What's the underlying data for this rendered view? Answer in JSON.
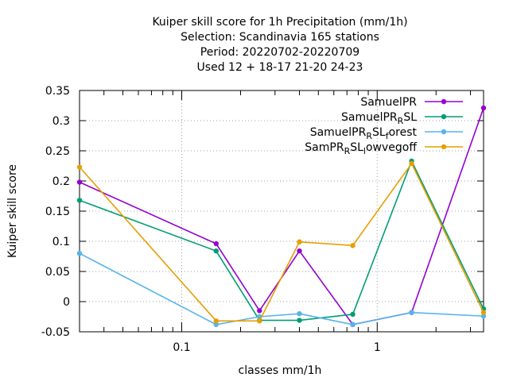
{
  "chart_data": {
    "type": "line",
    "title_lines": [
      "Kuiper skill score  for 1h Precipitation (mm/1h)",
      "Selection: Scandinavia    165 stations",
      "Period: 20220702-20220709",
      "Used  12 + 18-17 21-20 24-23"
    ],
    "xlabel": "classes mm/1h",
    "ylabel": "Kuiper skill score",
    "xscale": "log",
    "xlim": [
      0.03,
      3.5
    ],
    "ylim": [
      -0.05,
      0.35
    ],
    "x_ticks": [
      {
        "value": 0.1,
        "label": "0.1"
      },
      {
        "value": 1,
        "label": "1"
      }
    ],
    "y_ticks": [
      {
        "value": -0.05,
        "label": "-0.05"
      },
      {
        "value": 0,
        "label": "0"
      },
      {
        "value": 0.05,
        "label": "0.05"
      },
      {
        "value": 0.1,
        "label": "0.1"
      },
      {
        "value": 0.15,
        "label": "0.15"
      },
      {
        "value": 0.2,
        "label": "0.2"
      },
      {
        "value": 0.25,
        "label": "0.25"
      },
      {
        "value": 0.3,
        "label": "0.3"
      },
      {
        "value": 0.35,
        "label": "0.35"
      }
    ],
    "grid": true,
    "legend_position": "top-right",
    "x": [
      0.03,
      0.15,
      0.25,
      0.4,
      0.75,
      1.5,
      3.5
    ],
    "series": [
      {
        "name": "SamuelPR",
        "legend_parts": [
          [
            "SamuelPR",
            ""
          ]
        ],
        "color": "#9400d3",
        "values": [
          0.198,
          0.096,
          -0.015,
          0.084,
          -0.038,
          -0.018,
          0.321
        ]
      },
      {
        "name": "SamuelPR_RSL",
        "legend_parts": [
          [
            "SamuelPR",
            ""
          ],
          [
            "R",
            "sub"
          ],
          [
            "SL",
            ""
          ]
        ],
        "color": "#009e73",
        "values": [
          0.168,
          0.084,
          -0.031,
          -0.031,
          -0.021,
          0.233,
          -0.012
        ]
      },
      {
        "name": "SamuelPR_RSL_forest",
        "legend_parts": [
          [
            "SamuelPR",
            ""
          ],
          [
            "R",
            "sub"
          ],
          [
            "SL",
            ""
          ],
          [
            "f",
            "sub"
          ],
          [
            "orest",
            ""
          ]
        ],
        "color": "#56b4e9",
        "values": [
          0.08,
          -0.038,
          -0.025,
          -0.02,
          -0.038,
          -0.018,
          -0.024
        ]
      },
      {
        "name": "SamPR_RSL_lowvegoff",
        "legend_parts": [
          [
            "SamPR",
            ""
          ],
          [
            "R",
            "sub"
          ],
          [
            "SL",
            ""
          ],
          [
            "l",
            "sub"
          ],
          [
            "owvegoff",
            ""
          ]
        ],
        "color": "#e69f00",
        "values": [
          0.223,
          -0.032,
          -0.032,
          0.099,
          0.093,
          0.229,
          -0.018
        ]
      }
    ]
  }
}
